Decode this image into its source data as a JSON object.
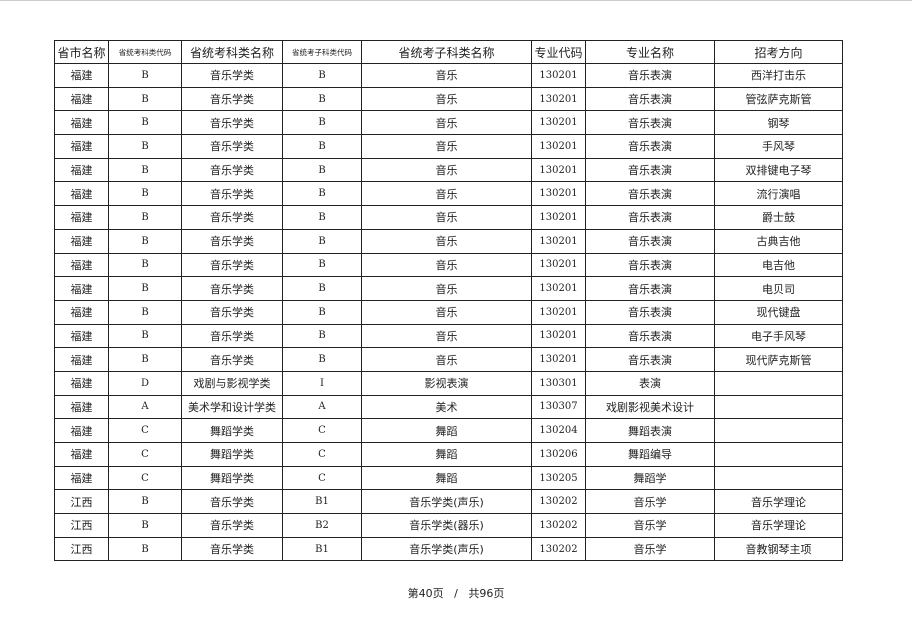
{
  "headers": [
    "省市名称",
    "省统考科类代码",
    "省统考科类名称",
    "省统考子科类代码",
    "省统考子科类名称",
    "专业代码",
    "专业名称",
    "招考方向"
  ],
  "rows": [
    [
      "福建",
      "B",
      "音乐学类",
      "B",
      "音乐",
      "130201",
      "音乐表演",
      "西洋打击乐"
    ],
    [
      "福建",
      "B",
      "音乐学类",
      "B",
      "音乐",
      "130201",
      "音乐表演",
      "管弦萨克斯管"
    ],
    [
      "福建",
      "B",
      "音乐学类",
      "B",
      "音乐",
      "130201",
      "音乐表演",
      "钢琴"
    ],
    [
      "福建",
      "B",
      "音乐学类",
      "B",
      "音乐",
      "130201",
      "音乐表演",
      "手风琴"
    ],
    [
      "福建",
      "B",
      "音乐学类",
      "B",
      "音乐",
      "130201",
      "音乐表演",
      "双排键电子琴"
    ],
    [
      "福建",
      "B",
      "音乐学类",
      "B",
      "音乐",
      "130201",
      "音乐表演",
      "流行演唱"
    ],
    [
      "福建",
      "B",
      "音乐学类",
      "B",
      "音乐",
      "130201",
      "音乐表演",
      "爵士鼓"
    ],
    [
      "福建",
      "B",
      "音乐学类",
      "B",
      "音乐",
      "130201",
      "音乐表演",
      "古典吉他"
    ],
    [
      "福建",
      "B",
      "音乐学类",
      "B",
      "音乐",
      "130201",
      "音乐表演",
      "电吉他"
    ],
    [
      "福建",
      "B",
      "音乐学类",
      "B",
      "音乐",
      "130201",
      "音乐表演",
      "电贝司"
    ],
    [
      "福建",
      "B",
      "音乐学类",
      "B",
      "音乐",
      "130201",
      "音乐表演",
      "现代键盘"
    ],
    [
      "福建",
      "B",
      "音乐学类",
      "B",
      "音乐",
      "130201",
      "音乐表演",
      "电子手风琴"
    ],
    [
      "福建",
      "B",
      "音乐学类",
      "B",
      "音乐",
      "130201",
      "音乐表演",
      "现代萨克斯管"
    ],
    [
      "福建",
      "D",
      "戏剧与影视学类",
      "I",
      "影视表演",
      "130301",
      "表演",
      ""
    ],
    [
      "福建",
      "A",
      "美术学和设计学类",
      "A",
      "美术",
      "130307",
      "戏剧影视美术设计",
      ""
    ],
    [
      "福建",
      "C",
      "舞蹈学类",
      "C",
      "舞蹈",
      "130204",
      "舞蹈表演",
      ""
    ],
    [
      "福建",
      "C",
      "舞蹈学类",
      "C",
      "舞蹈",
      "130206",
      "舞蹈编导",
      ""
    ],
    [
      "福建",
      "C",
      "舞蹈学类",
      "C",
      "舞蹈",
      "130205",
      "舞蹈学",
      ""
    ],
    [
      "江西",
      "B",
      "音乐学类",
      "B1",
      "音乐学类(声乐)",
      "130202",
      "音乐学",
      "音乐学理论"
    ],
    [
      "江西",
      "B",
      "音乐学类",
      "B2",
      "音乐学类(器乐)",
      "130202",
      "音乐学",
      "音乐学理论"
    ],
    [
      "江西",
      "B",
      "音乐学类",
      "B1",
      "音乐学类(声乐)",
      "130202",
      "音乐学",
      "音教钢琴主项"
    ]
  ],
  "footer": {
    "page": "第40页",
    "sep": "/",
    "total": "共96页"
  }
}
